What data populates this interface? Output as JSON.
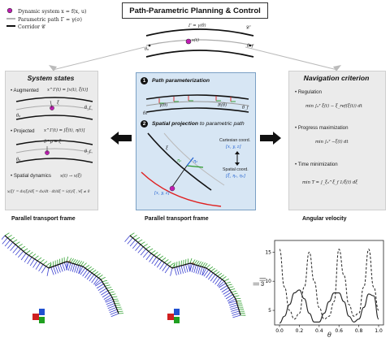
{
  "header": {
    "title": "Path-Parametric Planning & Control"
  },
  "legend": {
    "dynamic_system": "Dynamic system  x = f(x, u)",
    "parametric_path": "Parametric path  Γ = γ(σ)",
    "corridor": "Corridor  𝒞"
  },
  "top_diagram": {
    "gamma_label": "Γ = γ(θ)",
    "corridor_label": "𝒞",
    "x_label": "x(t)",
    "theta0": "θ₀",
    "thetaf": "θ_f"
  },
  "system_states": {
    "title": "System states",
    "items": [
      {
        "label": "Augmented",
        "eq": "x^Γ(t) = [x(t), ξ(t)]"
      },
      {
        "label": "Projected",
        "eq": "x^Γ(t) = [ξ(t), η(t)]"
      },
      {
        "label": "Spatial dynamics",
        "eq": "x(t) → x(ξ)"
      }
    ],
    "spatial_eq": "x(ξ)' = dx(ξ)/dξ = dx/dt · dt/dξ = ẋ(t)/ξ̇ , ∀ξ̇ ≠ 0",
    "diagram_labels": {
      "theta0": "θ₀",
      "thetaf": "θ_f",
      "xi": "ξ",
      "sigma": "σ",
      "theta_eq": "θ^p = ξ",
      "e": "e",
      "eta": "η"
    }
  },
  "center": {
    "step1_num": "1",
    "step1_title": "Path parameterization",
    "step2_num": "2",
    "step2_title_a": "Spatial projection",
    "step2_title_b": " to parametric path",
    "gamma_theta": "γ(θ)",
    "R_theta": "R(θ)",
    "theta0": "θ₀",
    "thetaf": "θ_f",
    "cartesian_label": "Cartesian coord.",
    "cartesian_vec": "[x, y, z]",
    "spatial_label": "Spatial coord.",
    "spatial_vec": "[ξ, η₁, η₂]",
    "point_label": "[x, y, z]",
    "xi": "ξ",
    "eta1": "η₁",
    "eta2": "η₂"
  },
  "navigation": {
    "title": "Navigation criterion",
    "items": [
      {
        "label": "Regulation",
        "eq": "min ∫₀ᵀ ξ(t) − ξ_ref(ξ(t)) dt"
      },
      {
        "label": "Progress maximization",
        "eq": "min ∫₀ᵀ −ξ(t) dt"
      },
      {
        "label": "Time minimization",
        "eq": "min T = ∫_ξ₀^ξ_f 1/ξ̇(t) dξ"
      }
    ]
  },
  "captions": {
    "left": "Parallel transport frame",
    "mid": "Parallel transport frame",
    "right": "Angular velocity"
  },
  "chart_data": {
    "type": "line",
    "xlabel": "θ",
    "ylabel": "||ω||",
    "xlim": [
      0.0,
      1.0
    ],
    "ylim": [
      2.5,
      17
    ],
    "xticks": [
      "0.0",
      "0.2",
      "0.4",
      "0.6",
      "0.8",
      "1.0"
    ],
    "yticks": [
      "5",
      "10",
      "15"
    ],
    "x": [
      0.0,
      0.05,
      0.1,
      0.15,
      0.2,
      0.25,
      0.3,
      0.35,
      0.4,
      0.45,
      0.5,
      0.55,
      0.6,
      0.65,
      0.7,
      0.75,
      0.8,
      0.85,
      0.9,
      0.95,
      1.0
    ],
    "series": [
      {
        "style": "dashed",
        "values": [
          15.5,
          9.0,
          5.0,
          3.5,
          4.5,
          9.0,
          15.0,
          10.0,
          5.5,
          3.5,
          4.0,
          6.5,
          15.5,
          11.0,
          6.0,
          4.0,
          4.5,
          9.0,
          15.5,
          9.0,
          5.0
        ]
      },
      {
        "style": "solid",
        "values": [
          2.8,
          4.0,
          6.0,
          8.0,
          8.5,
          7.0,
          4.5,
          3.0,
          3.0,
          4.5,
          6.5,
          8.0,
          8.0,
          6.5,
          4.0,
          3.0,
          3.5,
          5.5,
          7.8,
          7.5,
          3.5
        ]
      }
    ],
    "grid": false
  }
}
